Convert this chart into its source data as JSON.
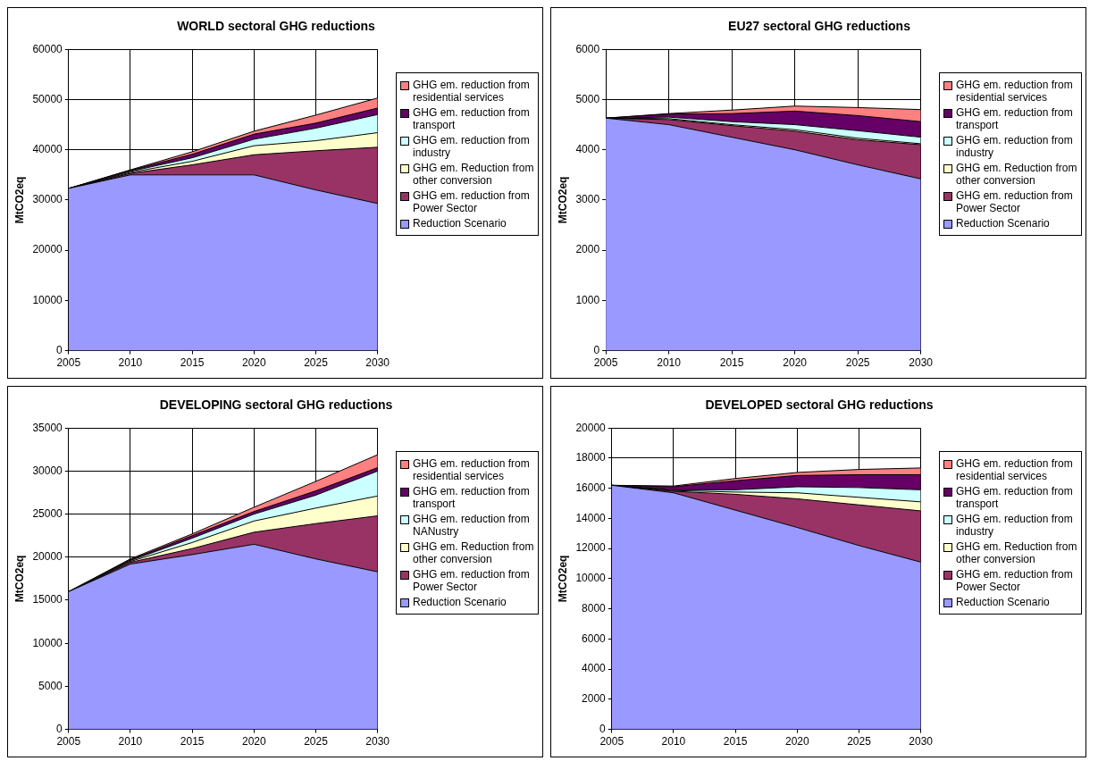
{
  "chart_data": [
    {
      "type": "area",
      "title": "WORLD sectoral GHG reductions",
      "ylabel": "MtCO2eq",
      "x": [
        2005,
        2010,
        2015,
        2020,
        2025,
        2030
      ],
      "xlim": [
        2005,
        2030
      ],
      "xticks": [
        2005,
        2010,
        2015,
        2020,
        2025,
        2030
      ],
      "ylim": [
        0,
        60000
      ],
      "yticks": [
        0,
        10000,
        20000,
        30000,
        40000,
        50000,
        60000
      ],
      "stacked": true,
      "grid": true,
      "legend": "right",
      "series": [
        {
          "name": "Reduction Scenario",
          "color": "#9999ff",
          "values": [
            32300,
            35000,
            35000,
            35000,
            32000,
            29300
          ]
        },
        {
          "name": "GHG em. reduction from Power Sector",
          "color": "#993366",
          "values": [
            0,
            300,
            2000,
            4000,
            7800,
            11200
          ]
        },
        {
          "name": "GHG em. Reduction from other conversion",
          "color": "#ffffcc",
          "values": [
            0,
            200,
            700,
            1800,
            2000,
            2900
          ]
        },
        {
          "name": "GHG em. reduction from industry",
          "color": "#ccffff",
          "values": [
            0,
            200,
            700,
            1300,
            2500,
            3600
          ]
        },
        {
          "name": "GHG em. reduction from transport",
          "color": "#660066",
          "values": [
            0,
            200,
            700,
            1000,
            1000,
            1300
          ]
        },
        {
          "name": "GHG em. reduction from residential services",
          "color": "#ff8080",
          "values": [
            0,
            100,
            500,
            600,
            1600,
            2000
          ]
        }
      ]
    },
    {
      "type": "area",
      "title": "EU27 sectoral GHG reductions",
      "ylabel": "MtCO2eq",
      "x": [
        2005,
        2010,
        2015,
        2020,
        2025,
        2030
      ],
      "xlim": [
        2005,
        2030
      ],
      "xticks": [
        2005,
        2010,
        2015,
        2020,
        2025,
        2030
      ],
      "ylim": [
        0,
        6000
      ],
      "yticks": [
        0,
        1000,
        2000,
        3000,
        4000,
        5000,
        6000
      ],
      "stacked": true,
      "grid": true,
      "legend": "right",
      "series": [
        {
          "name": "Reduction Scenario",
          "color": "#9999ff",
          "values": [
            4630,
            4500,
            4250,
            4000,
            3700,
            3420
          ]
        },
        {
          "name": "GHG em. reduction from Power Sector",
          "color": "#993366",
          "values": [
            0,
            100,
            230,
            370,
            500,
            680
          ]
        },
        {
          "name": "GHG em. Reduction from other conversion",
          "color": "#ffffcc",
          "values": [
            0,
            20,
            20,
            30,
            30,
            20
          ]
        },
        {
          "name": "GHG em. reduction from industry",
          "color": "#ccffff",
          "values": [
            0,
            30,
            60,
            100,
            150,
            130
          ]
        },
        {
          "name": "GHG em. reduction from transport",
          "color": "#660066",
          "values": [
            0,
            60,
            160,
            270,
            300,
            310
          ]
        },
        {
          "name": "GHG em. reduction from residential services",
          "color": "#ff8080",
          "values": [
            0,
            10,
            70,
            100,
            160,
            240
          ]
        }
      ]
    },
    {
      "type": "area",
      "title": "DEVELOPING sectoral GHG reductions",
      "ylabel": "MtCO2eq",
      "x": [
        2005,
        2010,
        2015,
        2020,
        2025,
        2030
      ],
      "xlim": [
        2005,
        2030
      ],
      "xticks": [
        2005,
        2010,
        2015,
        2020,
        2025,
        2030
      ],
      "ylim": [
        0,
        35000
      ],
      "yticks": [
        0,
        5000,
        10000,
        15000,
        20000,
        25000,
        30000,
        35000
      ],
      "stacked": true,
      "grid": true,
      "legend": "right",
      "series": [
        {
          "name": "Reduction Scenario",
          "color": "#9999ff",
          "values": [
            16000,
            19200,
            20300,
            21500,
            19800,
            18300
          ]
        },
        {
          "name": "GHG em. reduction from Power Sector",
          "color": "#993366",
          "values": [
            0,
            200,
            700,
            1400,
            4100,
            6500
          ]
        },
        {
          "name": "GHG em. Reduction from other conversion",
          "color": "#ffffcc",
          "values": [
            0,
            100,
            700,
            1300,
            1800,
            2300
          ]
        },
        {
          "name": "GHG em. reduction from NANustry",
          "color": "#ccffff",
          "values": [
            0,
            100,
            500,
            800,
            1500,
            2900
          ]
        },
        {
          "name": "GHG em. reduction from transport",
          "color": "#660066",
          "values": [
            0,
            100,
            300,
            300,
            500,
            400
          ]
        },
        {
          "name": "GHG em. reduction from residential services",
          "color": "#ff8080",
          "values": [
            0,
            100,
            200,
            500,
            1100,
            1500
          ]
        }
      ]
    },
    {
      "type": "area",
      "title": "DEVELOPED sectoral GHG reductions",
      "ylabel": "MtCO2eq",
      "x": [
        2005,
        2010,
        2015,
        2020,
        2025,
        2030
      ],
      "xlim": [
        2005,
        2030
      ],
      "xticks": [
        2005,
        2010,
        2015,
        2020,
        2025,
        2030
      ],
      "ylim": [
        0,
        20000
      ],
      "yticks": [
        0,
        2000,
        4000,
        6000,
        8000,
        10000,
        12000,
        14000,
        16000,
        18000,
        20000
      ],
      "stacked": true,
      "grid": true,
      "legend": "right",
      "series": [
        {
          "name": "Reduction Scenario",
          "color": "#9999ff",
          "values": [
            16200,
            15700,
            14550,
            13400,
            12200,
            11100
          ]
        },
        {
          "name": "GHG em. reduction from Power Sector",
          "color": "#993366",
          "values": [
            0,
            100,
            1050,
            1900,
            2700,
            3400
          ]
        },
        {
          "name": "GHG em. Reduction from other conversion",
          "color": "#ffffcc",
          "values": [
            0,
            50,
            150,
            400,
            500,
            600
          ]
        },
        {
          "name": "GHG em. reduction from industry",
          "color": "#ccffff",
          "values": [
            0,
            50,
            150,
            400,
            650,
            800
          ]
        },
        {
          "name": "GHG em. reduction from transport",
          "color": "#660066",
          "values": [
            0,
            200,
            600,
            750,
            850,
            1000
          ]
        },
        {
          "name": "GHG em. reduction from residential services",
          "color": "#ff8080",
          "values": [
            0,
            50,
            150,
            200,
            350,
            450
          ]
        }
      ]
    }
  ]
}
